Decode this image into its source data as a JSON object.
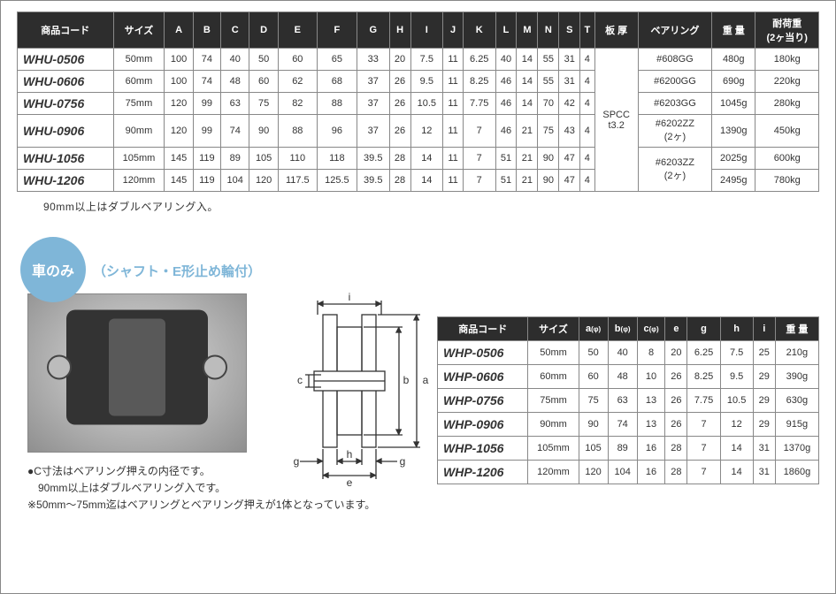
{
  "table1": {
    "headers": [
      "商品コード",
      "サイズ",
      "A",
      "B",
      "C",
      "D",
      "E",
      "F",
      "G",
      "H",
      "I",
      "J",
      "K",
      "L",
      "M",
      "N",
      "S",
      "T",
      "板 厚",
      "ベアリング",
      "重 量",
      "耐荷重\n(2ヶ当り)"
    ],
    "plate_thickness": "SPCC\nt3.2",
    "bearing_groups": [
      {
        "label": "#608GG",
        "span": 1
      },
      {
        "label": "#6200GG",
        "span": 1
      },
      {
        "label": "#6203GG",
        "span": 1
      },
      {
        "label": "#6202ZZ\n(2ヶ)",
        "span": 1
      },
      {
        "label": "#6203ZZ\n(2ヶ)",
        "span": 2
      }
    ],
    "rows": [
      {
        "code": "WHU-0506",
        "size": "50mm",
        "A": "100",
        "B": "74",
        "C": "40",
        "D": "50",
        "E": "60",
        "F": "65",
        "G": "33",
        "H": "20",
        "I": "7.5",
        "J": "11",
        "K": "6.25",
        "L": "40",
        "M": "14",
        "N": "55",
        "S": "31",
        "T": "4",
        "weight": "480g",
        "load": "180kg"
      },
      {
        "code": "WHU-0606",
        "size": "60mm",
        "A": "100",
        "B": "74",
        "C": "48",
        "D": "60",
        "E": "62",
        "F": "68",
        "G": "37",
        "H": "26",
        "I": "9.5",
        "J": "11",
        "K": "8.25",
        "L": "46",
        "M": "14",
        "N": "55",
        "S": "31",
        "T": "4",
        "weight": "690g",
        "load": "220kg"
      },
      {
        "code": "WHU-0756",
        "size": "75mm",
        "A": "120",
        "B": "99",
        "C": "63",
        "D": "75",
        "E": "82",
        "F": "88",
        "G": "37",
        "H": "26",
        "I": "10.5",
        "J": "11",
        "K": "7.75",
        "L": "46",
        "M": "14",
        "N": "70",
        "S": "42",
        "T": "4",
        "weight": "1045g",
        "load": "280kg"
      },
      {
        "code": "WHU-0906",
        "size": "90mm",
        "A": "120",
        "B": "99",
        "C": "74",
        "D": "90",
        "E": "88",
        "F": "96",
        "G": "37",
        "H": "26",
        "I": "12",
        "J": "11",
        "K": "7",
        "L": "46",
        "M": "21",
        "N": "75",
        "S": "43",
        "T": "4",
        "weight": "1390g",
        "load": "450kg"
      },
      {
        "code": "WHU-1056",
        "size": "105mm",
        "A": "145",
        "B": "119",
        "C": "89",
        "D": "105",
        "E": "110",
        "F": "118",
        "G": "39.5",
        "H": "28",
        "I": "14",
        "J": "11",
        "K": "7",
        "L": "51",
        "M": "21",
        "N": "90",
        "S": "47",
        "T": "4",
        "weight": "2025g",
        "load": "600kg"
      },
      {
        "code": "WHU-1206",
        "size": "120mm",
        "A": "145",
        "B": "119",
        "C": "104",
        "D": "120",
        "E": "117.5",
        "F": "125.5",
        "G": "39.5",
        "H": "28",
        "I": "14",
        "J": "11",
        "K": "7",
        "L": "51",
        "M": "21",
        "N": "90",
        "S": "47",
        "T": "4",
        "weight": "2495g",
        "load": "780kg"
      }
    ]
  },
  "note_top": "90mm以上はダブルベアリング入。",
  "badge": "車のみ",
  "subtitle": "（シャフト・E形止め輪付）",
  "notes_bottom": [
    "●C寸法はベアリング押えの内径です。",
    "　90mm以上はダブルベアリング入です。",
    "※50mm～75mm迄はベアリングとベアリング押えが1体となっています。"
  ],
  "diagram_labels": {
    "a": "a",
    "b": "b",
    "c": "c",
    "e": "e",
    "g_left": "g",
    "g_right": "g",
    "h": "h",
    "i": "i"
  },
  "table2": {
    "headers": [
      "商品コード",
      "サイズ",
      "a(φ)",
      "b(φ)",
      "c(φ)",
      "e",
      "g",
      "h",
      "i",
      "重 量"
    ],
    "rows": [
      {
        "code": "WHP-0506",
        "size": "50mm",
        "a": "50",
        "b": "40",
        "c": "8",
        "e": "20",
        "g": "6.25",
        "h": "7.5",
        "i": "25",
        "weight": "210g"
      },
      {
        "code": "WHP-0606",
        "size": "60mm",
        "a": "60",
        "b": "48",
        "c": "10",
        "e": "26",
        "g": "8.25",
        "h": "9.5",
        "i": "29",
        "weight": "390g"
      },
      {
        "code": "WHP-0756",
        "size": "75mm",
        "a": "75",
        "b": "63",
        "c": "13",
        "e": "26",
        "g": "7.75",
        "h": "10.5",
        "i": "29",
        "weight": "630g"
      },
      {
        "code": "WHP-0906",
        "size": "90mm",
        "a": "90",
        "b": "74",
        "c": "13",
        "e": "26",
        "g": "7",
        "h": "12",
        "i": "29",
        "weight": "915g"
      },
      {
        "code": "WHP-1056",
        "size": "105mm",
        "a": "105",
        "b": "89",
        "c": "16",
        "e": "28",
        "g": "7",
        "h": "14",
        "i": "31",
        "weight": "1370g"
      },
      {
        "code": "WHP-1206",
        "size": "120mm",
        "a": "120",
        "b": "104",
        "c": "16",
        "e": "28",
        "g": "7",
        "h": "14",
        "i": "31",
        "weight": "1860g"
      }
    ]
  },
  "colors": {
    "header_bg": "#2d2d2d",
    "header_fg": "#ffffff",
    "border": "#888888",
    "badge_bg": "#7fb6d8",
    "badge_fg": "#ffffff",
    "text": "#333333"
  }
}
